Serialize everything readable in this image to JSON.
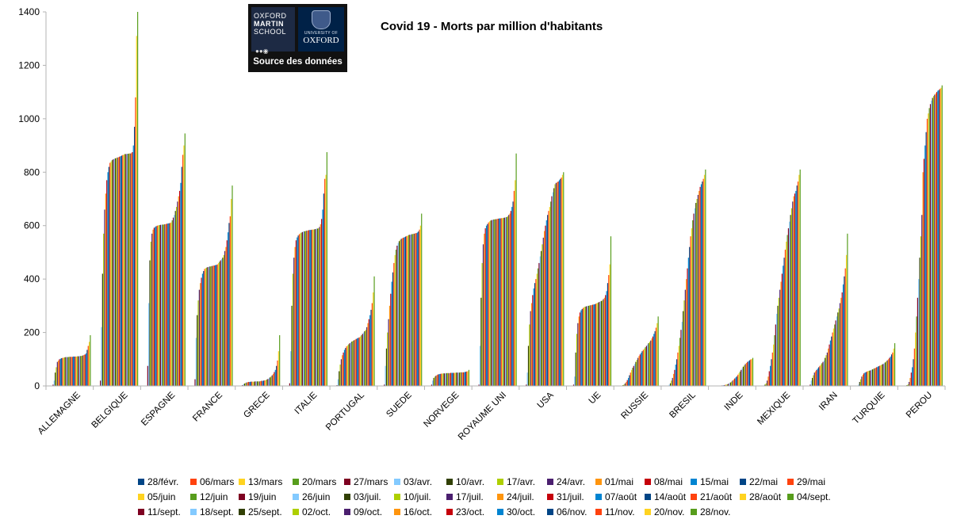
{
  "chart_data": {
    "type": "bar",
    "title": "Covid 19 - Morts par million d'habitants",
    "xlabel": "",
    "ylabel": "",
    "ylim": [
      0,
      1400
    ],
    "yticks": [
      0,
      200,
      400,
      600,
      800,
      1000,
      1200,
      1400
    ],
    "grid": false,
    "legend_position": "bottom",
    "categories": [
      "ALLEMAGNE",
      "BELGIQUE",
      "ESPAGNE",
      "FRANCE",
      "GRECE",
      "ITALIE",
      "PORTUGAL",
      "SUEDE",
      "NORVEGE",
      "ROYAUME UNI",
      "USA",
      "UE",
      "RUSSIE",
      "BRESIL",
      "INDE",
      "MEXIQUE",
      "IRAN",
      "TURQUIE",
      "PEROU"
    ],
    "series_names": [
      "28/févr.",
      "06/mars",
      "13/mars",
      "20/mars",
      "27/mars",
      "03/avr.",
      "10/avr.",
      "17/avr.",
      "24/avr.",
      "01/mai",
      "08/mai",
      "15/mai",
      "22/mai",
      "29/mai",
      "05/juin",
      "12/juin",
      "19/juin",
      "26/juin",
      "03/juil.",
      "10/juil.",
      "17/juil.",
      "24/juil.",
      "31/juil.",
      "07/août",
      "14/août",
      "21/août",
      "28/août",
      "04/sept.",
      "11/sept.",
      "18/sept.",
      "25/sept.",
      "02/oct.",
      "09/oct.",
      "16/oct.",
      "23/oct.",
      "30/oct.",
      "06/nov.",
      "11/nov.",
      "20/nov.",
      "28/nov."
    ],
    "series_colors": [
      "#004586",
      "#ff420e",
      "#ffd320",
      "#579d1c",
      "#7e0021",
      "#83caff",
      "#314004",
      "#aecf00",
      "#4b1f6f",
      "#ff950e",
      "#c5000b",
      "#0084d1",
      "#004586",
      "#ff420e",
      "#ffd320",
      "#579d1c",
      "#7e0021",
      "#83caff",
      "#314004",
      "#aecf00",
      "#4b1f6f",
      "#ff950e",
      "#c5000b",
      "#0084d1",
      "#004586",
      "#ff420e",
      "#ffd320",
      "#579d1c",
      "#7e0021",
      "#83caff",
      "#314004",
      "#aecf00",
      "#4b1f6f",
      "#ff950e",
      "#c5000b",
      "#0084d1",
      "#004586",
      "#ff420e",
      "#ffd320",
      "#579d1c"
    ],
    "values_by_country": [
      [
        0,
        0,
        0,
        0,
        5,
        20,
        50,
        70,
        90,
        95,
        100,
        102,
        104,
        105,
        106,
        107,
        108,
        108,
        108,
        109,
        109,
        109,
        109,
        110,
        110,
        110,
        110,
        111,
        111,
        112,
        112,
        113,
        114,
        116,
        118,
        122,
        135,
        150,
        165,
        190
      ],
      [
        0,
        0,
        0,
        0,
        20,
        220,
        420,
        570,
        660,
        720,
        770,
        800,
        820,
        835,
        840,
        845,
        848,
        850,
        852,
        853,
        855,
        856,
        858,
        860,
        862,
        864,
        866,
        868,
        868,
        869,
        869,
        870,
        870,
        871,
        875,
        900,
        970,
        1080,
        1310,
        1400
      ],
      [
        0,
        0,
        0,
        0,
        75,
        310,
        470,
        540,
        570,
        585,
        592,
        595,
        598,
        600,
        601,
        602,
        603,
        603,
        604,
        604,
        605,
        606,
        607,
        608,
        609,
        610,
        612,
        620,
        630,
        640,
        655,
        670,
        690,
        710,
        730,
        760,
        820,
        865,
        900,
        945
      ],
      [
        0,
        0,
        0,
        0,
        25,
        180,
        265,
        320,
        360,
        385,
        405,
        420,
        430,
        438,
        441,
        443,
        445,
        446,
        447,
        448,
        449,
        450,
        451,
        452,
        453,
        455,
        460,
        465,
        470,
        475,
        480,
        490,
        505,
        520,
        545,
        575,
        610,
        635,
        700,
        750
      ],
      [
        0,
        0,
        0,
        1,
        3,
        6,
        9,
        11,
        13,
        14,
        15,
        15,
        16,
        16,
        16,
        16,
        17,
        17,
        17,
        17,
        17,
        18,
        19,
        19,
        20,
        21,
        22,
        24,
        26,
        29,
        32,
        36,
        40,
        45,
        52,
        60,
        75,
        95,
        130,
        190
      ],
      [
        0,
        0,
        0,
        0,
        10,
        130,
        300,
        420,
        480,
        520,
        545,
        556,
        563,
        568,
        571,
        574,
        576,
        578,
        579,
        580,
        581,
        582,
        583,
        584,
        584,
        585,
        585,
        586,
        587,
        588,
        589,
        590,
        595,
        605,
        625,
        660,
        720,
        775,
        790,
        875
      ],
      [
        0,
        0,
        0,
        0,
        3,
        25,
        55,
        80,
        100,
        115,
        125,
        135,
        142,
        148,
        152,
        156,
        160,
        163,
        166,
        169,
        171,
        173,
        176,
        178,
        180,
        182,
        185,
        190,
        195,
        200,
        205,
        210,
        220,
        235,
        250,
        265,
        285,
        310,
        350,
        410
      ],
      [
        0,
        0,
        0,
        0,
        5,
        75,
        140,
        200,
        250,
        300,
        345,
        390,
        425,
        460,
        490,
        510,
        525,
        535,
        542,
        547,
        551,
        553,
        555,
        557,
        559,
        561,
        563,
        565,
        566,
        567,
        568,
        569,
        570,
        571,
        572,
        574,
        578,
        585,
        600,
        645
      ],
      [
        0,
        0,
        0,
        0,
        5,
        20,
        30,
        35,
        38,
        41,
        43,
        44,
        45,
        46,
        46,
        47,
        47,
        47,
        48,
        48,
        48,
        48,
        49,
        49,
        49,
        49,
        49,
        50,
        50,
        50,
        50,
        51,
        51,
        51,
        51,
        52,
        53,
        54,
        55,
        60
      ],
      [
        0,
        0,
        0,
        0,
        5,
        150,
        330,
        460,
        530,
        570,
        590,
        600,
        606,
        612,
        616,
        619,
        621,
        622,
        623,
        624,
        624,
        625,
        626,
        627,
        627,
        628,
        628,
        629,
        630,
        631,
        632,
        635,
        640,
        645,
        655,
        670,
        690,
        730,
        770,
        870
      ],
      [
        0,
        0,
        0,
        0,
        5,
        50,
        150,
        230,
        280,
        310,
        340,
        365,
        385,
        400,
        420,
        440,
        460,
        485,
        505,
        530,
        555,
        580,
        600,
        620,
        640,
        655,
        670,
        690,
        710,
        725,
        740,
        755,
        760,
        762,
        765,
        770,
        775,
        780,
        790,
        800
      ],
      [
        0,
        0,
        0,
        0,
        5,
        35,
        125,
        195,
        235,
        260,
        275,
        283,
        288,
        292,
        295,
        297,
        298,
        299,
        300,
        301,
        302,
        303,
        304,
        305,
        306,
        308,
        310,
        312,
        314,
        316,
        318,
        320,
        325,
        330,
        340,
        355,
        385,
        415,
        455,
        560
      ],
      [
        0,
        0,
        0,
        0,
        0,
        1,
        3,
        6,
        10,
        15,
        22,
        30,
        40,
        50,
        60,
        68,
        75,
        82,
        90,
        98,
        105,
        112,
        118,
        124,
        130,
        135,
        140,
        145,
        150,
        155,
        160,
        165,
        170,
        178,
        185,
        195,
        205,
        218,
        235,
        260
      ],
      [
        0,
        0,
        0,
        0,
        0,
        5,
        10,
        20,
        30,
        45,
        60,
        80,
        100,
        125,
        150,
        180,
        210,
        240,
        280,
        320,
        360,
        400,
        440,
        480,
        520,
        560,
        590,
        620,
        645,
        665,
        685,
        700,
        715,
        730,
        745,
        755,
        765,
        775,
        790,
        810
      ],
      [
        0,
        0,
        0,
        0,
        0,
        0,
        0,
        0,
        1,
        1,
        2,
        2,
        3,
        4,
        5,
        6,
        8,
        10,
        13,
        16,
        20,
        24,
        28,
        32,
        36,
        42,
        48,
        54,
        60,
        66,
        72,
        77,
        82,
        86,
        90,
        93,
        96,
        99,
        101,
        105
      ],
      [
        0,
        0,
        0,
        0,
        0,
        2,
        5,
        10,
        20,
        35,
        55,
        75,
        100,
        125,
        155,
        190,
        230,
        270,
        300,
        330,
        360,
        390,
        420,
        450,
        480,
        510,
        540,
        565,
        590,
        615,
        640,
        665,
        690,
        710,
        720,
        730,
        750,
        765,
        790,
        810
      ],
      [
        0,
        0,
        0,
        0,
        5,
        20,
        30,
        40,
        50,
        55,
        60,
        65,
        70,
        75,
        80,
        85,
        90,
        95,
        105,
        115,
        125,
        140,
        155,
        170,
        185,
        200,
        215,
        230,
        245,
        260,
        275,
        290,
        310,
        330,
        350,
        380,
        410,
        440,
        490,
        570
      ],
      [
        0,
        0,
        0,
        0,
        0,
        5,
        15,
        25,
        35,
        42,
        47,
        50,
        52,
        54,
        56,
        57,
        58,
        60,
        62,
        64,
        66,
        68,
        70,
        72,
        74,
        76,
        78,
        80,
        82,
        85,
        88,
        92,
        96,
        100,
        105,
        110,
        118,
        125,
        140,
        160
      ],
      [
        0,
        0,
        0,
        0,
        0,
        1,
        3,
        6,
        15,
        30,
        50,
        70,
        100,
        140,
        200,
        260,
        330,
        400,
        480,
        560,
        640,
        800,
        850,
        900,
        950,
        1000,
        1020,
        1040,
        1055,
        1068,
        1078,
        1085,
        1090,
        1095,
        1100,
        1105,
        1108,
        1112,
        1116,
        1125
      ]
    ]
  }
}
